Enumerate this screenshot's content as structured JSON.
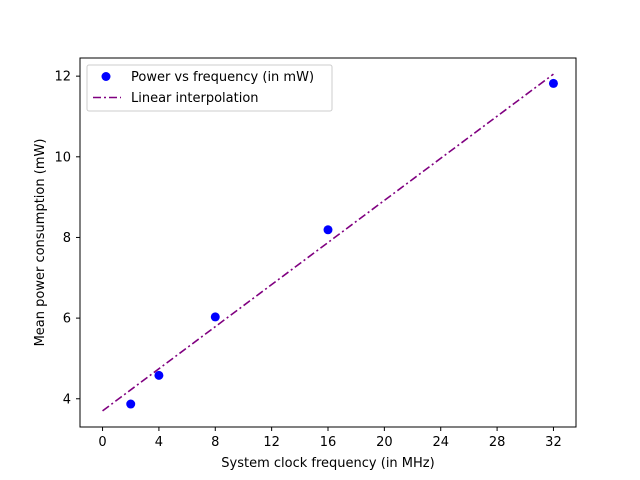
{
  "chart_data": {
    "type": "scatter",
    "xlabel": "System clock frequency (in MHz)",
    "ylabel": "Mean power consumption (mW)",
    "xlim": [
      -1.6,
      33.6
    ],
    "ylim": [
      3.3,
      12.45
    ],
    "xticks": [
      0,
      4,
      8,
      12,
      16,
      20,
      24,
      28,
      32
    ],
    "yticks": [
      4,
      6,
      8,
      10,
      12
    ],
    "grid": false,
    "legend_position": "top-left",
    "series": [
      {
        "name": "Power vs frequency (in mW)",
        "kind": "scatter",
        "color": "#0000ff",
        "x": [
          2,
          4,
          8,
          16,
          32
        ],
        "y": [
          3.87,
          4.58,
          6.03,
          8.19,
          11.82
        ]
      },
      {
        "name": "Linear interpolation",
        "kind": "line",
        "style": "dash-dot",
        "color": "#800080",
        "x": [
          0,
          32
        ],
        "y": [
          3.7,
          12.05
        ]
      }
    ]
  }
}
